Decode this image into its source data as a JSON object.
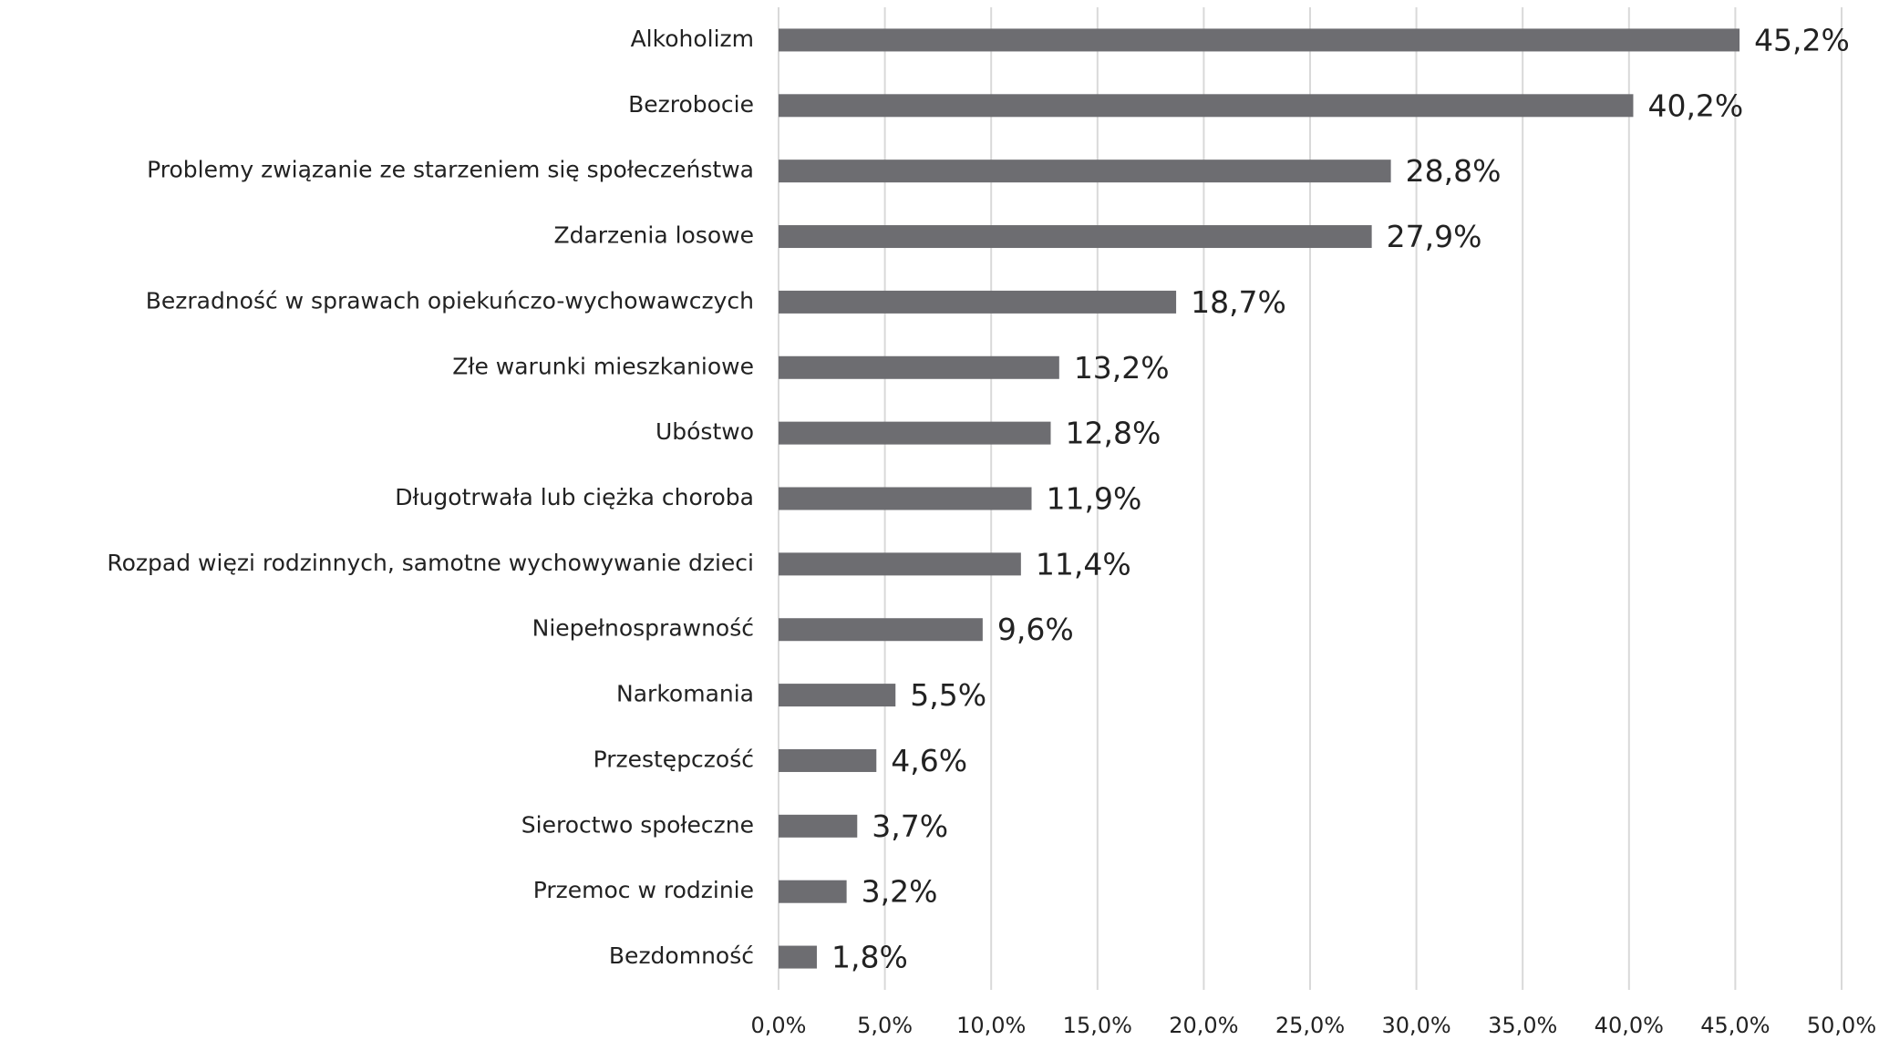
{
  "chart_data": {
    "type": "barh",
    "categories": [
      "Alkoholizm",
      "Bezrobocie",
      "Problemy związanie ze starzeniem się społeczeństwa",
      "Zdarzenia losowe",
      "Bezradność w sprawach opiekuńczo-wychowawczych",
      "Złe warunki mieszkaniowe",
      "Ubóstwo",
      "Długotrwała lub ciężka choroba",
      "Rozpad więzi rodzinnych, samotne wychowywanie dzieci",
      "Niepełnosprawność",
      "Narkomania",
      "Przestępczość",
      "Sieroctwo społeczne",
      "Przemoc w rodzinie",
      "Bezdomność"
    ],
    "values": [
      45.2,
      40.2,
      28.8,
      27.9,
      18.7,
      13.2,
      12.8,
      11.9,
      11.4,
      9.6,
      5.5,
      4.6,
      3.7,
      3.2,
      1.8
    ],
    "value_labels": [
      "45,2%",
      "40,2%",
      "28,8%",
      "27,9%",
      "18,7%",
      "13,2%",
      "12,8%",
      "11,9%",
      "11,4%",
      "9,6%",
      "5,5%",
      "4,6%",
      "3,7%",
      "3,2%",
      "1,8%"
    ],
    "color": "#6d6d71",
    "xlim": [
      0,
      50
    ],
    "xticks": [
      {
        "value": 0,
        "label": "0,0%"
      },
      {
        "value": 5,
        "label": "5,0%"
      },
      {
        "value": 10,
        "label": "10,0%"
      },
      {
        "value": 15,
        "label": "15,0%"
      },
      {
        "value": 20,
        "label": "20,0%"
      },
      {
        "value": 25,
        "label": "25,0%"
      },
      {
        "value": 30,
        "label": "30,0%"
      },
      {
        "value": 35,
        "label": "35,0%"
      },
      {
        "value": 40,
        "label": "40,0%"
      },
      {
        "value": 45,
        "label": "45,0%"
      },
      {
        "value": 50,
        "label": "50,0%"
      }
    ],
    "grid": true
  }
}
